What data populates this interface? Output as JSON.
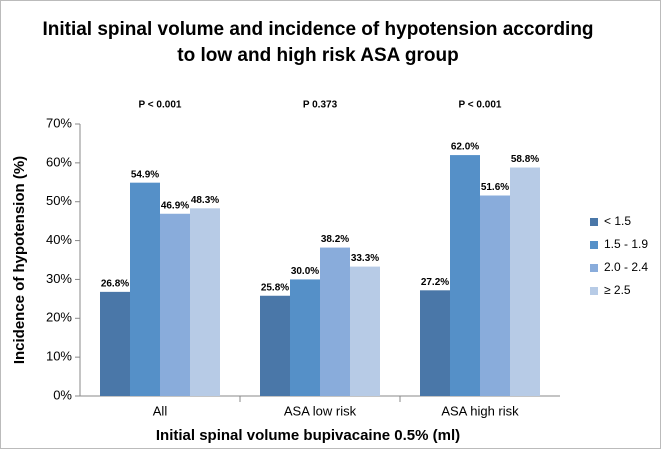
{
  "chart_data": {
    "type": "bar",
    "title": [
      "Initial spinal volume and incidence of hypotension according",
      "to low and high risk ASA group"
    ],
    "categories": [
      "All",
      "ASA low risk",
      "ASA high risk"
    ],
    "annotations": [
      "P < 0.001",
      "P  0.373",
      "P < 0.001"
    ],
    "series": [
      {
        "name": "< 1.5",
        "color": "#4a77a8",
        "values": [
          26.8,
          25.8,
          27.2
        ],
        "value_labels": [
          "26.8%",
          "25.8%",
          "27.2%"
        ]
      },
      {
        "name": "1.5 - 1.9",
        "color": "#5590c8",
        "values": [
          54.9,
          30.0,
          62.0
        ],
        "value_labels": [
          "54.9%",
          "30.0%",
          "62.0%"
        ]
      },
      {
        "name": "2.0 - 2.4",
        "color": "#89acdb",
        "values": [
          46.9,
          38.2,
          51.6
        ],
        "value_labels": [
          "46.9%",
          "38.2%",
          "51.6%"
        ]
      },
      {
        "name": "≥ 2.5",
        "color": "#b7cbe6",
        "values": [
          48.3,
          33.3,
          58.8
        ],
        "value_labels": [
          "48.3%",
          "33.3%",
          "58.8%"
        ]
      }
    ],
    "ylim": [
      0,
      70
    ],
    "yticks": [
      {
        "value": 0,
        "label": "0%"
      },
      {
        "value": 10,
        "label": "10%"
      },
      {
        "value": 20,
        "label": "20%"
      },
      {
        "value": 30,
        "label": "30%"
      },
      {
        "value": 40,
        "label": "40%"
      },
      {
        "value": 50,
        "label": "50%"
      },
      {
        "value": 60,
        "label": "60%"
      },
      {
        "value": 70,
        "label": "70%"
      }
    ],
    "y_label": "Incidence of hypotension (%)",
    "x_label": "Initial spinal volume bupivacaine 0.5% (ml)",
    "legend": "right",
    "grid": false
  }
}
